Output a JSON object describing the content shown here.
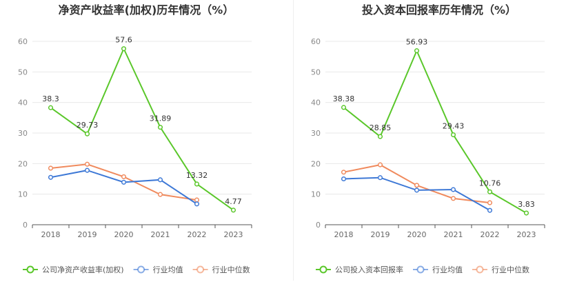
{
  "colors": {
    "company": "#5ac72a",
    "avg": "#3d78d6",
    "median": "#f08a5d",
    "grid": "#e8e8e8",
    "axis": "#555555"
  },
  "chart_data": [
    {
      "type": "line",
      "title": "净资产收益率(加权)历年情况（%）",
      "categories": [
        "2018",
        "2019",
        "2020",
        "2021",
        "2022",
        "2023"
      ],
      "ylim": [
        0,
        60
      ],
      "yticks": [
        "0",
        "10",
        "20",
        "30",
        "40",
        "50",
        "60"
      ],
      "grid": true,
      "legend_position": "bottom-left",
      "series": [
        {
          "name": "公司净资产收益率(加权)",
          "key": "company",
          "values": [
            38.3,
            29.73,
            57.6,
            31.89,
            13.32,
            4.77
          ],
          "labels": [
            "38.3",
            "29.73",
            "57.6",
            "31.89",
            "13.32",
            "4.77"
          ]
        },
        {
          "name": "行业均值",
          "key": "avg",
          "values": [
            15.5,
            17.8,
            13.9,
            14.7,
            6.8,
            null
          ]
        },
        {
          "name": "行业中位数",
          "key": "median",
          "values": [
            18.5,
            19.8,
            15.7,
            9.9,
            8.1,
            null
          ]
        }
      ]
    },
    {
      "type": "line",
      "title": "投入资本回报率历年情况（%）",
      "categories": [
        "2018",
        "2019",
        "2020",
        "2021",
        "2022",
        "2023"
      ],
      "ylim": [
        0,
        60
      ],
      "yticks": [
        "0",
        "10",
        "20",
        "30",
        "40",
        "50",
        "60"
      ],
      "grid": true,
      "legend_position": "bottom-left",
      "series": [
        {
          "name": "公司投入资本回报率",
          "key": "company",
          "values": [
            38.38,
            28.85,
            56.93,
            29.43,
            10.76,
            3.83
          ],
          "labels": [
            "38.38",
            "28.85",
            "56.93",
            "29.43",
            "10.76",
            "3.83"
          ]
        },
        {
          "name": "行业均值",
          "key": "avg",
          "values": [
            15.0,
            15.4,
            11.3,
            11.5,
            4.7,
            null
          ]
        },
        {
          "name": "行业中位数",
          "key": "median",
          "values": [
            17.2,
            19.6,
            12.9,
            8.6,
            7.2,
            null
          ]
        }
      ]
    }
  ]
}
